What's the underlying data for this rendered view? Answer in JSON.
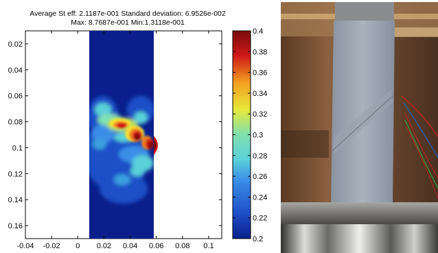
{
  "chart_data": {
    "type": "heatmap",
    "title_line1": "Average St eff: 2.1187e-001 Standard deviation: 6.9526e-002",
    "title_line2": "Max: 8.7687e-001 Min:1.3118e-001",
    "xlim": [
      -0.04,
      0.11
    ],
    "ylim": [
      0.17,
      0.01
    ],
    "x_ticks": [
      "-0.04",
      "-0.02",
      "0",
      "0.02",
      "0.04",
      "0.06",
      "0.08",
      "0.1"
    ],
    "y_ticks": [
      "0.02",
      "0.04",
      "0.06",
      "0.08",
      "0.1",
      "0.12",
      "0.14",
      "0.16"
    ],
    "colorbar": {
      "range": [
        0.2,
        0.4
      ],
      "ticks": [
        "0.4",
        "0.38",
        "0.36",
        "0.34",
        "0.32",
        "0.3",
        "0.28",
        "0.26",
        "0.24",
        "0.22",
        "0.2"
      ],
      "colormap": "jet"
    },
    "specimen_x_range": [
      0.007,
      0.057
    ],
    "specimen_y_range": [
      0.01,
      0.17
    ]
  },
  "colors": {
    "dark_blue": "#0a1f8c",
    "blue": "#1e4fc8",
    "light_blue": "#3aa0e0",
    "cyan": "#5ad0d8",
    "green_yellow": "#b8e060",
    "yellow": "#f4e030",
    "orange": "#f08020",
    "red": "#d01818",
    "dark_red": "#7a0a0a"
  },
  "photo": {
    "description_icon": "specimen-photo"
  }
}
